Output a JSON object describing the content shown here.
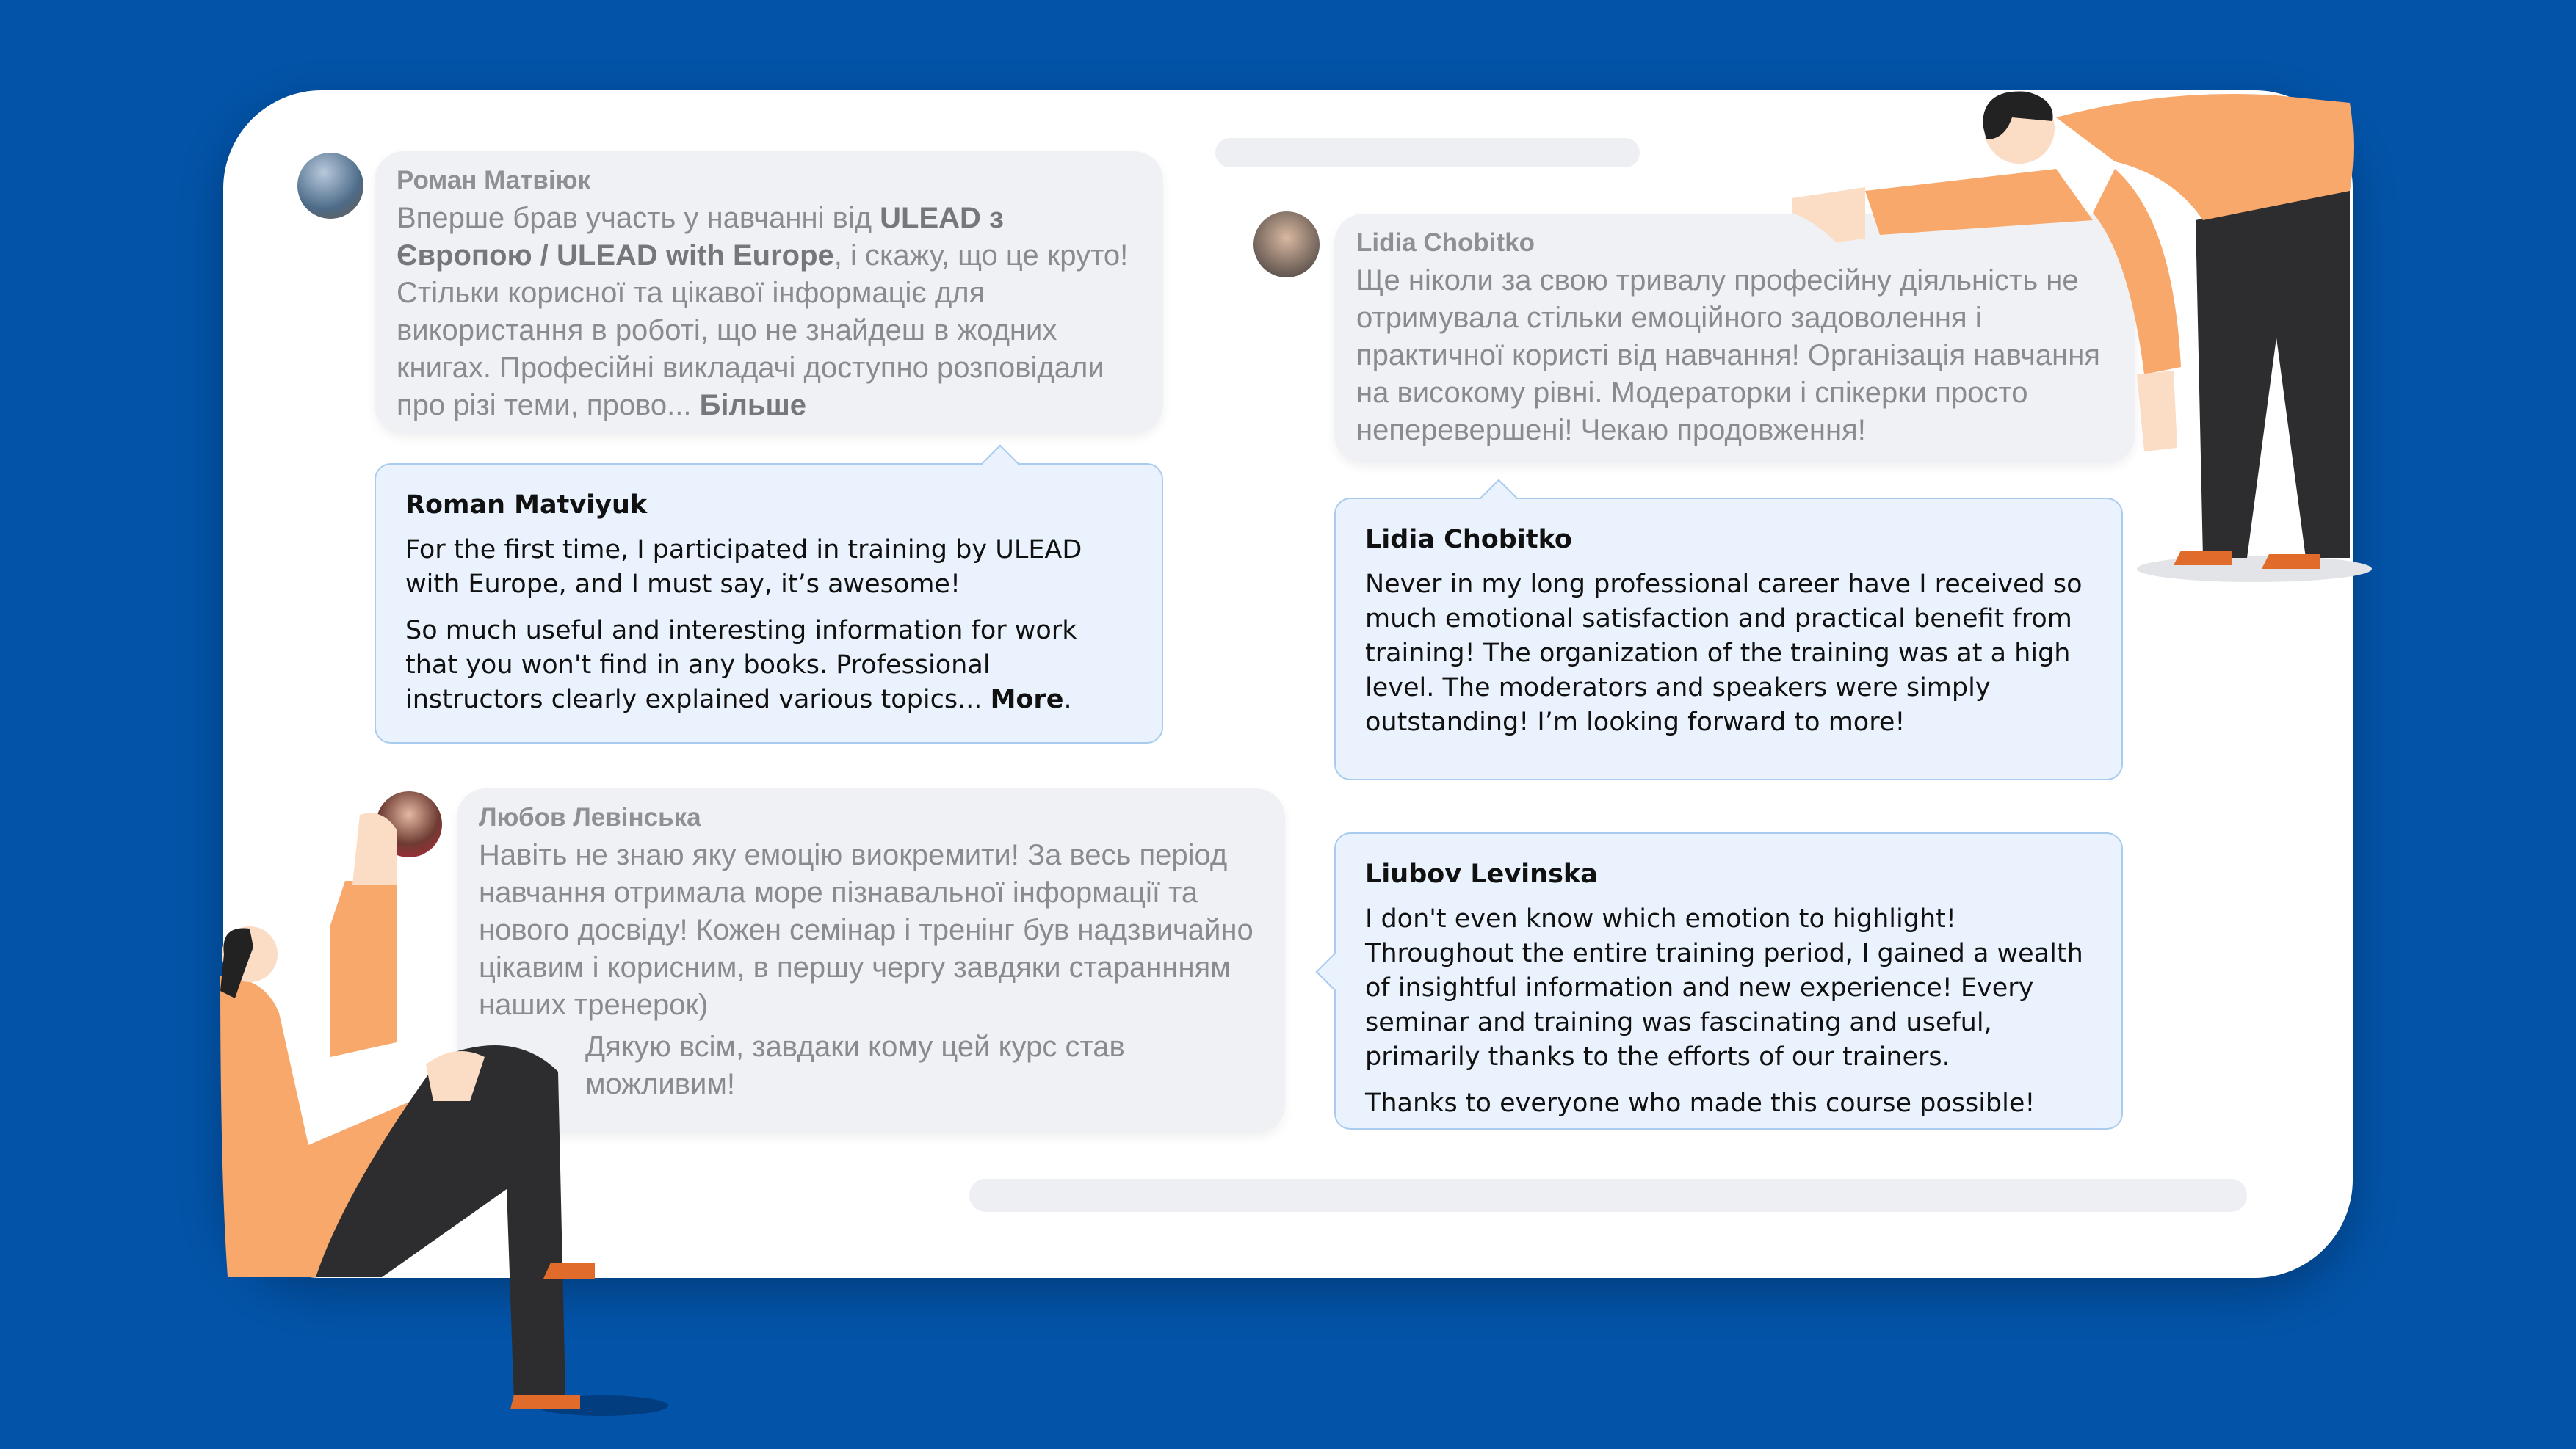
{
  "colors": {
    "background": "#0353a8",
    "card": "#ffffff",
    "original_bubble": "#f0f1f4",
    "translation_bubble": "#eaf3fd",
    "translation_border": "#a9cbee",
    "figure_orange": "#f8a86a",
    "figure_dark": "#2d2d2f"
  },
  "reviews": [
    {
      "original": {
        "author": "Роман Матвіюк",
        "text_pre": "Вперше брав участь у навчанні від ",
        "bold1": "ULEAD з Європою / ULEAD with Europe",
        "text_mid": ", і скажу, що це круто! Стільки корисної та цікавої інформаціє для використання в роботі, що не знайдеш в жодних книгах. Професійні викладачі доступно розповідали про різі теми, прово... ",
        "more": "Більше"
      },
      "translation": {
        "author": "Roman Matviyuk",
        "p1": "For the first time, I participated in training by ULEAD with Europe, and I must say, it’s awesome!",
        "p2": "So much useful and interesting information for work that you won't find in any books. Professional instructors clearly explained various topics... ",
        "more": "More",
        "end": "."
      }
    },
    {
      "original": {
        "author": "Lidia Chobitko",
        "text": "Ще ніколи за свою тривалу професійну діяльність не отримувала стільки емоційного задоволення і практичної користі від навчання! Організація навчання на високому рівні. Модераторки і спікерки просто неперевершені! Чекаю продовження!"
      },
      "translation": {
        "author": "Lidia Chobitko",
        "p1": "Never in my long professional career have I received so much emotional satisfaction and practical benefit from training! The organization of the training was at a high level. The moderators and speakers were simply outstanding! I’m looking forward to more!"
      }
    },
    {
      "original": {
        "author": "Любов Левінська",
        "text": "Навіть не знаю яку емоцію виокремити! За весь період навчання отримала море пізнавальної інформації та нового досвіду! Кожен семінар і тренінг був надзвичайно цікавим і корисним, в першу чергу завдяки стараннням наших тренерок)",
        "text2": "Дякую всім, завдаки кому цей курс став можливим!"
      },
      "translation": {
        "author": "Liubov Levinska",
        "p1": "I don't even know which emotion to highlight! Throughout the entire training period, I gained a wealth of insightful information and new experience! Every seminar and training was fascinating and useful, primarily thanks to the efforts of our trainers.",
        "p2": "Thanks to everyone who made this course possible!"
      }
    }
  ]
}
